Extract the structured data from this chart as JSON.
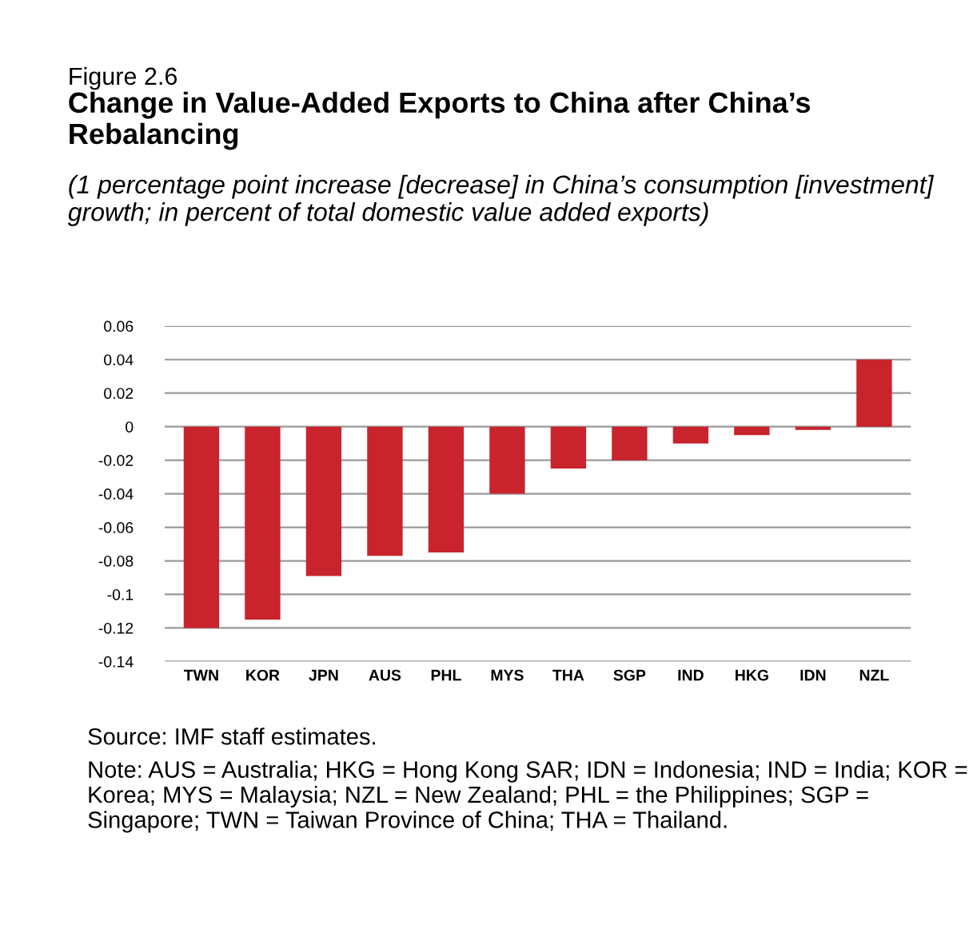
{
  "chart_data": {
    "type": "bar",
    "title": "Figure 2.6",
    "subtitle": "Change in Value-Added Exports to China after China’s Rebalancing",
    "ylabel": "(1 percentage point increase [decrease] in China’s consumption [investment] growth; in percent of total domestic value added exports)",
    "categories": [
      "TWN",
      "KOR",
      "JPN",
      "AUS",
      "PHL",
      "MYS",
      "THA",
      "SGP",
      "IND",
      "HKG",
      "IDN",
      "NZL"
    ],
    "values": [
      -0.12,
      -0.115,
      -0.089,
      -0.077,
      -0.075,
      -0.04,
      -0.025,
      -0.02,
      -0.01,
      -0.005,
      -0.002,
      0.04
    ],
    "color": "#c9232d",
    "ylim": [
      -0.14,
      0.06
    ],
    "yticks": [
      -0.14,
      -0.12,
      -0.1,
      -0.08,
      -0.06,
      -0.04,
      -0.02,
      0,
      0.02,
      0.04,
      0.06
    ],
    "grid": "y",
    "annotations": [
      "Source: IMF staff estimates.",
      "Note: AUS = Australia; HKG = Hong Kong SAR; IDN = Indonesia; IND = India; KOR = Korea; MYS = Malaysia; NZL = New Zealand; PHL = the Philippines; SGP = Singapore; TWN = Taiwan Province of China; THA = Thailand."
    ]
  }
}
